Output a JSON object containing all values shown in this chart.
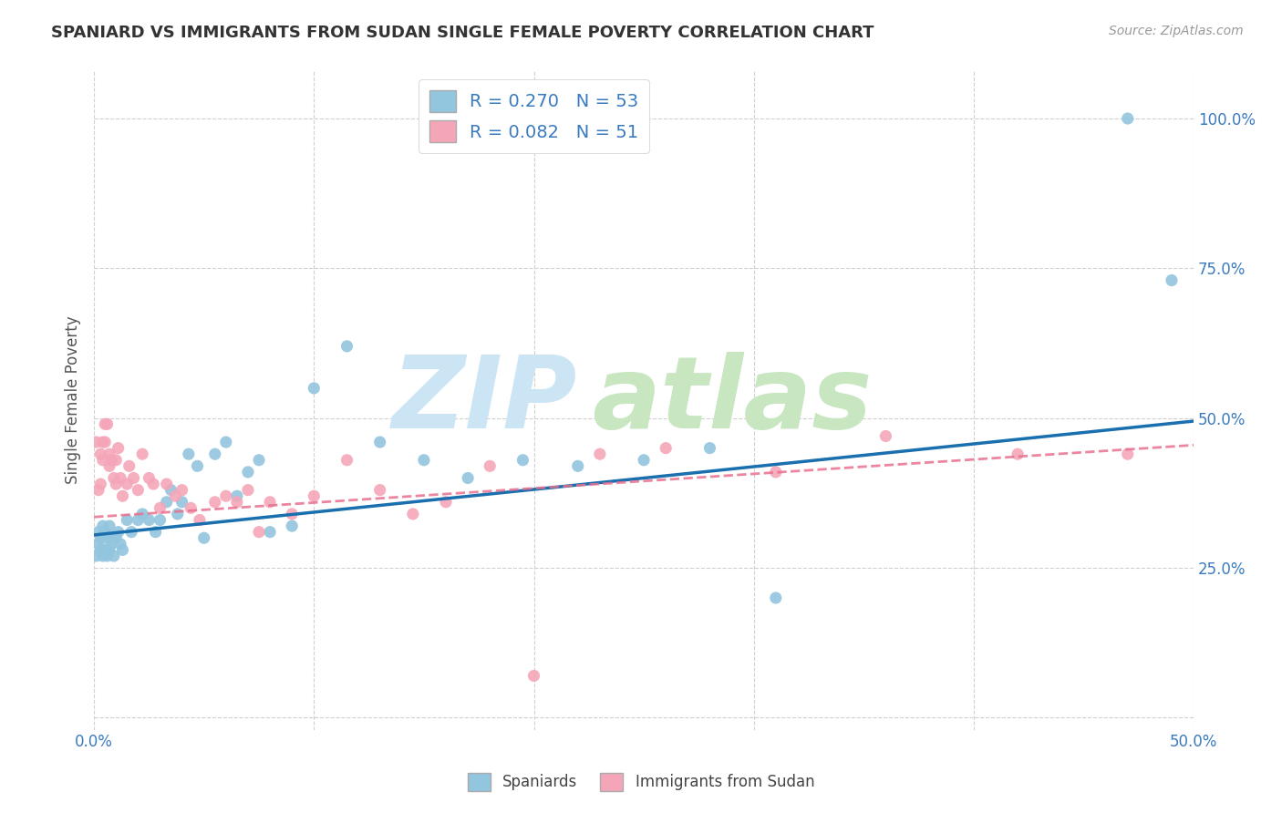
{
  "title": "SPANIARD VS IMMIGRANTS FROM SUDAN SINGLE FEMALE POVERTY CORRELATION CHART",
  "source": "Source: ZipAtlas.com",
  "ylabel": "Single Female Poverty",
  "legend_bottom": [
    "Spaniards",
    "Immigrants from Sudan"
  ],
  "r_spaniard": 0.27,
  "n_spaniard": 53,
  "r_sudan": 0.082,
  "n_sudan": 51,
  "xlim": [
    0.0,
    0.5
  ],
  "ylim": [
    -0.02,
    1.08
  ],
  "xticks": [
    0.0,
    0.1,
    0.2,
    0.3,
    0.4,
    0.5
  ],
  "yticks": [
    0.25,
    0.5,
    0.75,
    1.0
  ],
  "xticklabels": [
    "0.0%",
    "",
    "",
    "",
    "",
    "50.0%"
  ],
  "yticklabels": [
    "25.0%",
    "50.0%",
    "75.0%",
    "100.0%"
  ],
  "blue_color": "#92c5de",
  "pink_color": "#f4a6b8",
  "blue_line_color": "#1a6faf",
  "pink_line_color": "#e87090",
  "grid_color": "#d0d0d0",
  "spaniard_x": [
    0.001,
    0.002,
    0.002,
    0.003,
    0.003,
    0.004,
    0.004,
    0.005,
    0.005,
    0.006,
    0.006,
    0.007,
    0.007,
    0.008,
    0.008,
    0.009,
    0.01,
    0.011,
    0.012,
    0.013,
    0.015,
    0.017,
    0.02,
    0.022,
    0.025,
    0.028,
    0.03,
    0.033,
    0.035,
    0.038,
    0.04,
    0.043,
    0.047,
    0.05,
    0.055,
    0.06,
    0.065,
    0.07,
    0.075,
    0.08,
    0.09,
    0.1,
    0.115,
    0.13,
    0.15,
    0.17,
    0.195,
    0.22,
    0.25,
    0.28,
    0.31,
    0.47,
    0.49
  ],
  "spaniard_y": [
    0.27,
    0.29,
    0.31,
    0.28,
    0.3,
    0.27,
    0.32,
    0.28,
    0.31,
    0.27,
    0.3,
    0.28,
    0.32,
    0.29,
    0.3,
    0.27,
    0.3,
    0.31,
    0.29,
    0.28,
    0.33,
    0.31,
    0.33,
    0.34,
    0.33,
    0.31,
    0.33,
    0.36,
    0.38,
    0.34,
    0.36,
    0.44,
    0.42,
    0.3,
    0.44,
    0.46,
    0.37,
    0.41,
    0.43,
    0.31,
    0.32,
    0.55,
    0.62,
    0.46,
    0.43,
    0.4,
    0.43,
    0.42,
    0.43,
    0.45,
    0.2,
    1.0,
    0.73
  ],
  "sudan_x": [
    0.001,
    0.002,
    0.003,
    0.003,
    0.004,
    0.004,
    0.005,
    0.005,
    0.006,
    0.007,
    0.007,
    0.008,
    0.009,
    0.01,
    0.01,
    0.011,
    0.012,
    0.013,
    0.015,
    0.016,
    0.018,
    0.02,
    0.022,
    0.025,
    0.027,
    0.03,
    0.033,
    0.037,
    0.04,
    0.044,
    0.048,
    0.055,
    0.06,
    0.065,
    0.07,
    0.075,
    0.08,
    0.09,
    0.1,
    0.115,
    0.13,
    0.145,
    0.16,
    0.18,
    0.2,
    0.23,
    0.26,
    0.31,
    0.36,
    0.42,
    0.47
  ],
  "sudan_y": [
    0.46,
    0.38,
    0.44,
    0.39,
    0.46,
    0.43,
    0.49,
    0.46,
    0.49,
    0.44,
    0.42,
    0.43,
    0.4,
    0.43,
    0.39,
    0.45,
    0.4,
    0.37,
    0.39,
    0.42,
    0.4,
    0.38,
    0.44,
    0.4,
    0.39,
    0.35,
    0.39,
    0.37,
    0.38,
    0.35,
    0.33,
    0.36,
    0.37,
    0.36,
    0.38,
    0.31,
    0.36,
    0.34,
    0.37,
    0.43,
    0.38,
    0.34,
    0.36,
    0.42,
    0.07,
    0.44,
    0.45,
    0.41,
    0.47,
    0.44,
    0.44
  ],
  "blue_line_x": [
    0.0,
    0.5
  ],
  "blue_line_y": [
    0.305,
    0.495
  ],
  "pink_line_x": [
    0.0,
    0.5
  ],
  "pink_line_y": [
    0.335,
    0.455
  ]
}
